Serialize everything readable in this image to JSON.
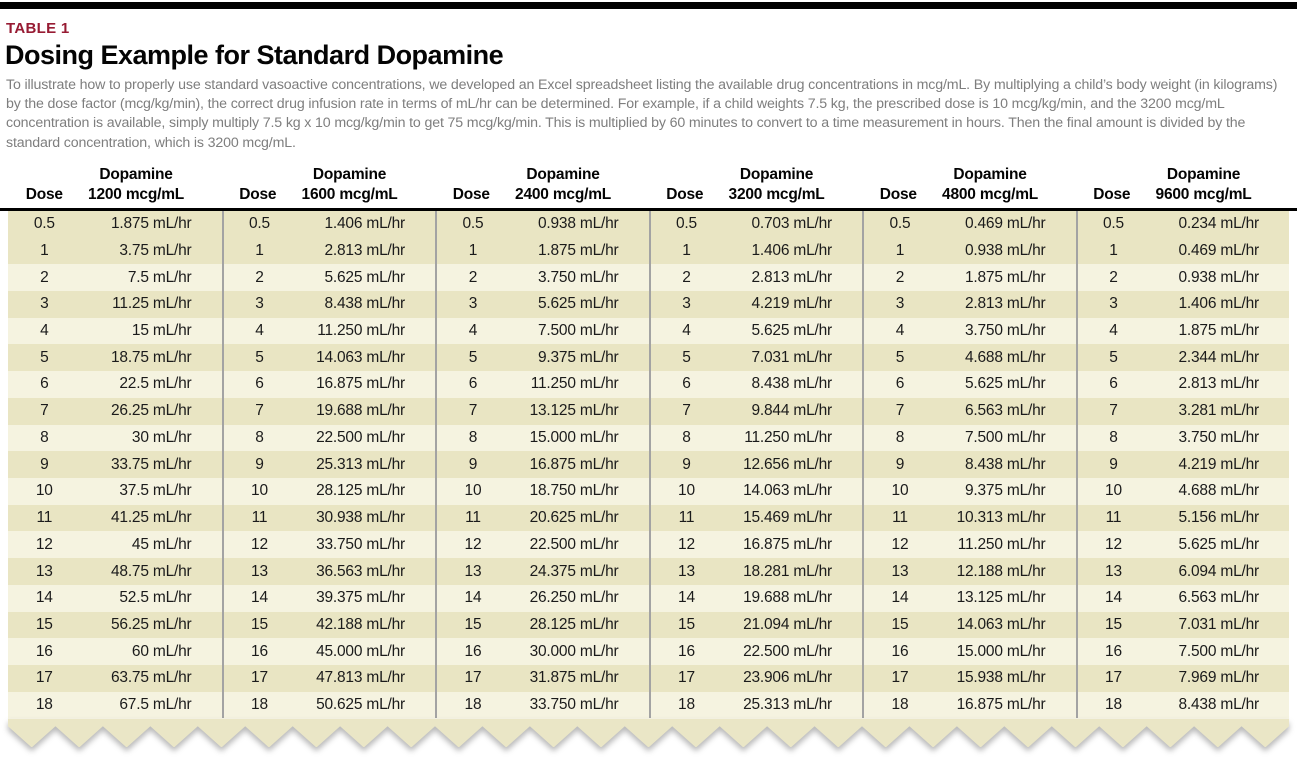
{
  "page": {
    "kicker": "TABLE 1",
    "title": "Dosing Example for Standard Dopamine",
    "description": "To illustrate how to properly use standard vasoactive concentrations, we developed an Excel spreadsheet listing the available drug concentrations in mcg/mL. By multiplying a child’s body weight (in kilograms) by the dose factor (mcg/kg/min), the correct drug infusion rate in terms of mL/hr can be determined. For example, if a child weights 7.5 kg, the prescribed dose is 10 mcg/kg/min, and the 3200 mcg/mL concentration is available, simply multiply 7.5 kg x 10 mcg/kg/min to get 75 mcg/kg/min. This is multiplied by 60 minutes to convert to a time measurement in hours. Then the final amount is divided by the standard concentration, which is 3200 mcg/mL."
  },
  "table": {
    "drug_name": "Dopamine",
    "dose_header": "Dose",
    "unit": "mL/hr",
    "concentrations": [
      "1200 mcg/mL",
      "1600 mcg/mL",
      "2400 mcg/mL",
      "3200 mcg/mL",
      "4800 mcg/mL",
      "9600 mcg/mL"
    ],
    "doses": [
      "0.5",
      "1",
      "2",
      "3",
      "4",
      "5",
      "6",
      "7",
      "8",
      "9",
      "10",
      "11",
      "12",
      "13",
      "14",
      "15",
      "16",
      "17",
      "18"
    ],
    "rates": [
      [
        "1.875",
        "1.406",
        "0.938",
        "0.703",
        "0.469",
        "0.234"
      ],
      [
        "3.75",
        "2.813",
        "1.875",
        "1.406",
        "0.938",
        "0.469"
      ],
      [
        "7.5",
        "5.625",
        "3.750",
        "2.813",
        "1.875",
        "0.938"
      ],
      [
        "11.25",
        "8.438",
        "5.625",
        "4.219",
        "2.813",
        "1.406"
      ],
      [
        "15",
        "11.250",
        "7.500",
        "5.625",
        "3.750",
        "1.875"
      ],
      [
        "18.75",
        "14.063",
        "9.375",
        "7.031",
        "4.688",
        "2.344"
      ],
      [
        "22.5",
        "16.875",
        "11.250",
        "8.438",
        "5.625",
        "2.813"
      ],
      [
        "26.25",
        "19.688",
        "13.125",
        "9.844",
        "6.563",
        "3.281"
      ],
      [
        "30",
        "22.500",
        "15.000",
        "11.250",
        "7.500",
        "3.750"
      ],
      [
        "33.75",
        "25.313",
        "16.875",
        "12.656",
        "8.438",
        "4.219"
      ],
      [
        "37.5",
        "28.125",
        "18.750",
        "14.063",
        "9.375",
        "4.688"
      ],
      [
        "41.25",
        "30.938",
        "20.625",
        "15.469",
        "10.313",
        "5.156"
      ],
      [
        "45",
        "33.750",
        "22.500",
        "16.875",
        "11.250",
        "5.625"
      ],
      [
        "48.75",
        "36.563",
        "24.375",
        "18.281",
        "12.188",
        "6.094"
      ],
      [
        "52.5",
        "39.375",
        "26.250",
        "19.688",
        "13.125",
        "6.563"
      ],
      [
        "56.25",
        "42.188",
        "28.125",
        "21.094",
        "14.063",
        "7.031"
      ],
      [
        "60",
        "45.000",
        "30.000",
        "22.500",
        "15.000",
        "7.500"
      ],
      [
        "63.75",
        "47.813",
        "31.875",
        "23.906",
        "15.938",
        "7.969"
      ],
      [
        "67.5",
        "50.625",
        "33.750",
        "25.313",
        "16.875",
        "8.438"
      ]
    ]
  },
  "colors": {
    "accent": "#971b33",
    "row_dark": "#e9e5c3",
    "row_light": "#f5f3e0",
    "divider": "#a3a3a3",
    "torn": "#eae6c6",
    "text_muted": "#7e7e7e",
    "text_body": "#1b1b1b"
  }
}
